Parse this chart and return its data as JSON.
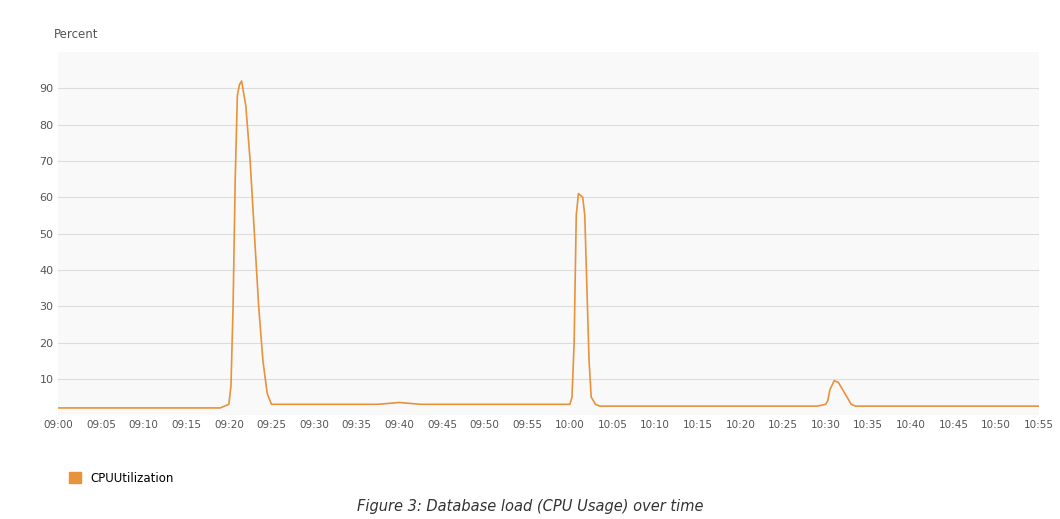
{
  "title": "Figure 3: Database load (CPU Usage) over time",
  "ylabel": "Percent",
  "legend_label": "CPUUtilization",
  "line_color": "#E8923A",
  "background_color": "#ffffff",
  "plot_bg_color": "#f9f9f9",
  "grid_color": "#dddddd",
  "ylim": [
    0,
    100
  ],
  "yticks": [
    10,
    20,
    30,
    40,
    50,
    60,
    70,
    80,
    90
  ],
  "xtick_labels": [
    "09:00",
    "09:05",
    "09:10",
    "09:15",
    "09:20",
    "09:25",
    "09:30",
    "09:35",
    "09:40",
    "09:45",
    "09:50",
    "09:55",
    "10:00",
    "10:05",
    "10:10",
    "10:15",
    "10:20",
    "10:25",
    "10:30",
    "10:35",
    "10:40",
    "10:45",
    "10:50",
    "10:55"
  ],
  "time_points": [
    0,
    0.5,
    1,
    1.5,
    2,
    2.5,
    3,
    3.2,
    3.5,
    3.8,
    4.0,
    4.05,
    4.1,
    4.15,
    4.2,
    4.25,
    4.3,
    4.4,
    4.5,
    4.6,
    4.7,
    4.8,
    4.9,
    5.0,
    5.2,
    5.5,
    6.0,
    6.5,
    7.0,
    7.5,
    8.0,
    8.5,
    9.0,
    9.5,
    10.0,
    10.5,
    11.0,
    11.5,
    11.8,
    12.0,
    12.05,
    12.1,
    12.15,
    12.2,
    12.3,
    12.35,
    12.4,
    12.45,
    12.5,
    12.6,
    12.7,
    12.8,
    13.0,
    13.5,
    14.0,
    14.5,
    15.0,
    15.5,
    16.0,
    16.5,
    17.0,
    17.5,
    17.8,
    18.0,
    18.05,
    18.1,
    18.2,
    18.3,
    18.4,
    18.5,
    18.6,
    18.7,
    19.0,
    19.5,
    20.0,
    20.5,
    21.0,
    21.5,
    22.0,
    22.5,
    23.0
  ],
  "cpu_values": [
    2,
    2,
    2,
    2,
    2,
    2,
    2,
    2,
    2,
    2,
    3,
    8,
    30,
    65,
    88,
    91,
    92,
    85,
    70,
    50,
    30,
    15,
    6,
    3,
    3,
    3,
    3,
    3,
    3,
    3,
    3.5,
    3,
    3,
    3,
    3,
    3,
    3,
    3,
    3,
    3,
    5,
    20,
    55,
    61,
    60,
    55,
    35,
    15,
    5,
    3,
    2.5,
    2.5,
    2.5,
    2.5,
    2.5,
    2.5,
    2.5,
    2.5,
    2.5,
    2.5,
    2.5,
    2.5,
    2.5,
    3,
    4,
    7,
    9.5,
    9,
    7,
    5,
    3,
    2.5,
    2.5,
    2.5,
    2.5,
    2.5,
    2.5,
    2.5,
    2.5,
    2.5,
    2.5
  ]
}
